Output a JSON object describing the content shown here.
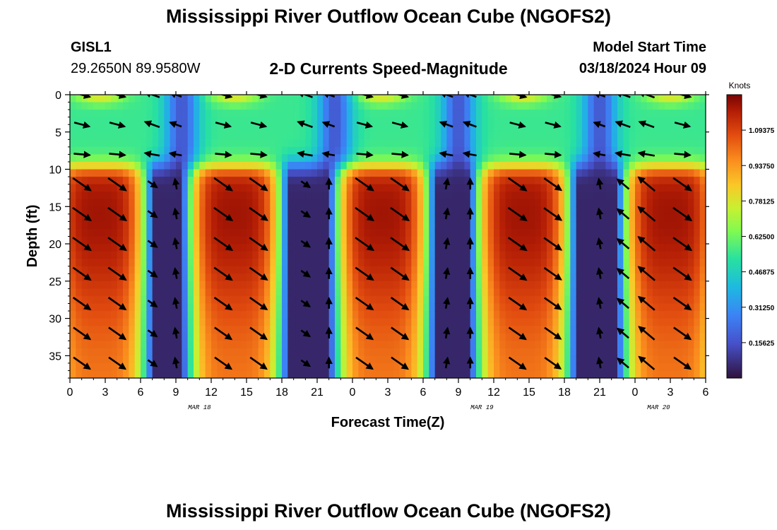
{
  "page": {
    "title": "Mississippi River Outflow Ocean Cube (NGOFS2)",
    "bottom_title": "Mississippi River Outflow Ocean Cube (NGOFS2)",
    "station": {
      "id": "GISL1",
      "coords": "29.2650N  89.9580W"
    },
    "subtitle": "2-D Currents Speed-Magnitude",
    "model": {
      "label": "Model Start Time",
      "value": "03/18/2024 Hour 09"
    }
  },
  "chart_data": {
    "type": "heatmap",
    "title": "2-D Currents Speed-Magnitude",
    "xlabel": "Forecast Time(Z)",
    "ylabel": "Depth (ft)",
    "x_ticks": [
      "0",
      "3",
      "6",
      "9",
      "12",
      "15",
      "18",
      "21",
      "0",
      "3",
      "6",
      "9",
      "12",
      "15",
      "18",
      "21",
      "0",
      "3",
      "6"
    ],
    "x_range_hours": [
      0,
      54
    ],
    "x_tick_step_hours": 3,
    "date_labels": [
      {
        "label": "MAR 18",
        "hour": 11
      },
      {
        "label": "MAR 19",
        "hour": 35
      },
      {
        "label": "MAR 20",
        "hour": 50
      }
    ],
    "y_ticks": [
      0,
      5,
      10,
      15,
      20,
      25,
      30,
      35
    ],
    "y_range_ft": [
      0,
      38
    ],
    "y_inverted": true,
    "colorbar": {
      "unit": "Knots",
      "labels": [
        "1.09375",
        "0.93750",
        "0.78125",
        "0.62500",
        "0.46875",
        "0.31250",
        "0.15625"
      ],
      "range": [
        0,
        1.25
      ],
      "colormap": "turbo"
    },
    "speed_field_description": {
      "high_speed_time_centers_hours": [
        2.5,
        14,
        26.5,
        38.5,
        51
      ],
      "low_speed_time_centers_hours": [
        9.5,
        22.5,
        33,
        45
      ],
      "upper_layer_depth_ft": [
        0,
        9
      ],
      "peak_speed_knots": 1.2
    },
    "vector_times_hours": [
      1,
      4,
      7,
      9,
      13,
      16,
      20,
      22,
      25,
      28,
      32,
      34,
      38,
      41,
      45,
      47,
      49,
      52
    ],
    "vector_depths_ft": [
      0,
      4,
      8,
      12,
      16,
      20,
      24,
      28,
      32,
      36
    ],
    "direction_pattern": {
      "upper_layer": "mostly westward/eastward alternating with tide",
      "lower_layer_ebb": "southeastward (down-right)",
      "lower_layer_flood": "northwestward (up-left)",
      "slack": "weak, near north-south"
    }
  }
}
